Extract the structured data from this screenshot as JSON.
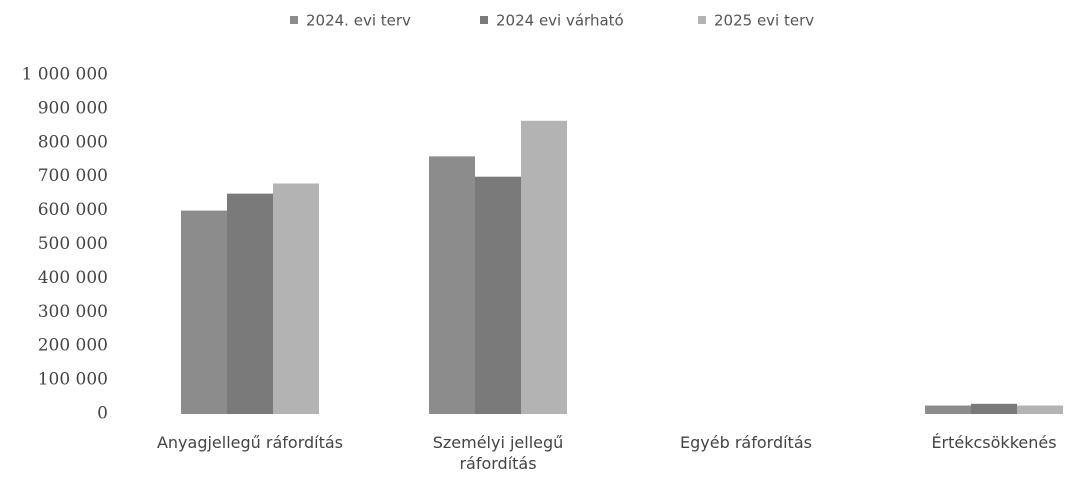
{
  "chart_data": {
    "type": "bar",
    "categories": [
      "Anyagjellegű ráfordítás",
      "Személyi jellegű ráfordítás",
      "Egyéb ráfordítás",
      "Értékcsökkenés"
    ],
    "series": [
      {
        "name": "2024. evi terv",
        "color": "#8c8c8c",
        "values": [
          600000,
          760000,
          0,
          25000
        ]
      },
      {
        "name": "2024 evi várható",
        "color": "#7a7a7a",
        "values": [
          650000,
          700000,
          0,
          30000
        ]
      },
      {
        "name": "2025 evi terv",
        "color": "#b3b3b3",
        "values": [
          680000,
          865000,
          0,
          25000
        ]
      }
    ],
    "ylim": [
      0,
      1000000
    ],
    "yticks": [
      0,
      {
        "value": 100000,
        "label": "100 000"
      },
      {
        "value": 200000,
        "label": "200 000"
      },
      {
        "value": 300000,
        "label": "300 000"
      },
      {
        "value": 400000,
        "label": "400 000"
      },
      {
        "value": 500000,
        "label": "500 000"
      },
      {
        "value": 600000,
        "label": "600 000"
      },
      {
        "value": 700000,
        "label": "700 000"
      },
      {
        "value": 800000,
        "label": "800 000"
      },
      {
        "value": 900000,
        "label": "900 000"
      },
      {
        "value": 1000000,
        "label": "1 000 000"
      }
    ],
    "grid": false,
    "legend": "top"
  }
}
